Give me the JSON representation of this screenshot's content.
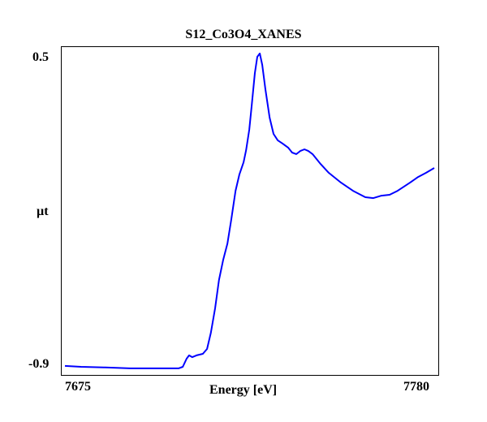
{
  "chart_data": {
    "type": "line",
    "title": "S12_Co3O4_XANES",
    "xlabel": "Energy [eV]",
    "ylabel": "µt",
    "xlim": [
      7675,
      7780
    ],
    "ylim": [
      -0.9,
      0.5
    ],
    "x_tick_labels": [
      "7675",
      "7780"
    ],
    "y_tick_labels": [
      "0.5",
      "-0.9"
    ],
    "grid": false,
    "series": [
      {
        "name": "S12_Co3O4_XANES",
        "color": "#0000ff",
        "x": [
          7675.0,
          7679.6,
          7686.5,
          7693.5,
          7700.4,
          7707.3,
          7708.5,
          7709.6,
          7710.3,
          7711.2,
          7712.4,
          7714.2,
          7715.4,
          7716.5,
          7717.7,
          7718.8,
          7720.0,
          7721.2,
          7722.3,
          7723.5,
          7724.6,
          7725.8,
          7726.5,
          7727.4,
          7728.1,
          7729.0,
          7729.7,
          7730.4,
          7731.1,
          7732.0,
          7733.2,
          7734.3,
          7735.5,
          7736.9,
          7738.5,
          7739.6,
          7740.8,
          7741.9,
          7743.1,
          7744.2,
          7745.4,
          7747.7,
          7750.0,
          7753.5,
          7756.9,
          7760.4,
          7762.7,
          7765.0,
          7767.3,
          7769.6,
          7773.1,
          7775.4,
          7777.7,
          7780.0
        ],
        "y": [
          -0.907,
          -0.911,
          -0.914,
          -0.918,
          -0.918,
          -0.918,
          -0.911,
          -0.874,
          -0.859,
          -0.867,
          -0.859,
          -0.852,
          -0.83,
          -0.756,
          -0.645,
          -0.516,
          -0.424,
          -0.35,
          -0.239,
          -0.11,
          -0.036,
          0.02,
          0.075,
          0.168,
          0.278,
          0.426,
          0.5,
          0.515,
          0.463,
          0.352,
          0.223,
          0.149,
          0.12,
          0.105,
          0.086,
          0.064,
          0.057,
          0.071,
          0.079,
          0.071,
          0.057,
          0.012,
          -0.028,
          -0.073,
          -0.11,
          -0.139,
          -0.143,
          -0.132,
          -0.128,
          -0.11,
          -0.073,
          -0.047,
          -0.028,
          -0.006
        ]
      }
    ]
  }
}
